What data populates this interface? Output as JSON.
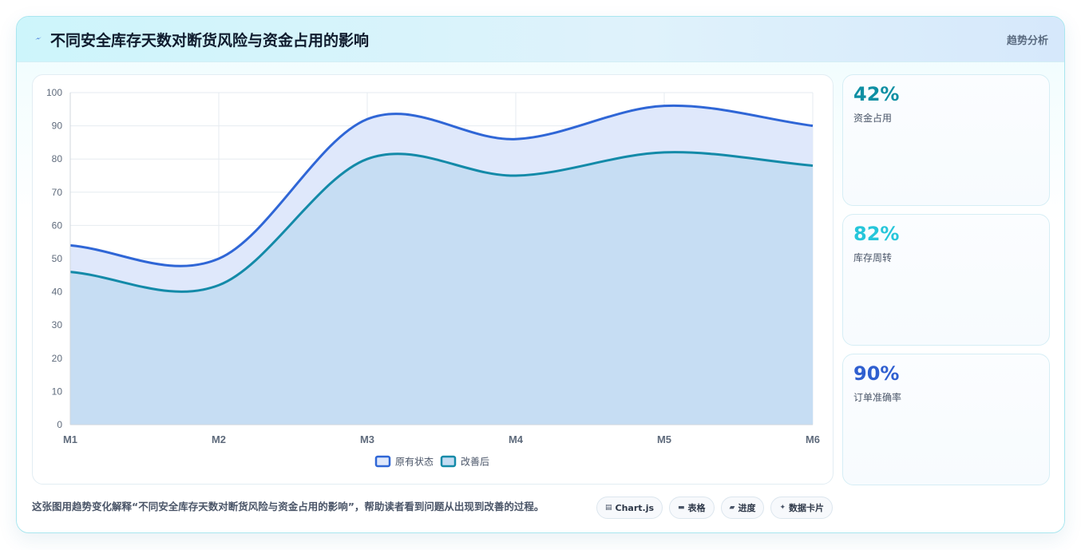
{
  "header": {
    "title": "不同安全库存天数对断货风险与资金占用的影响",
    "tag": "趋势分析",
    "icon": "lightning-icon"
  },
  "chart_data": {
    "type": "area",
    "title": "",
    "xlabel": "",
    "ylabel": "",
    "categories": [
      "M1",
      "M2",
      "M3",
      "M4",
      "M5",
      "M6"
    ],
    "ylim": [
      0,
      100
    ],
    "yticks": [
      0,
      10,
      20,
      30,
      40,
      50,
      60,
      70,
      80,
      90,
      100
    ],
    "grid": true,
    "legend_position": "bottom",
    "series": [
      {
        "name": "原有状态",
        "values": [
          54,
          50,
          92,
          86,
          96,
          90
        ],
        "color": "#2f66d6",
        "fill": "#dfe8fb"
      },
      {
        "name": "改善后",
        "values": [
          46,
          42,
          80,
          75,
          82,
          78
        ],
        "color": "#138aa8",
        "fill": "#c4dcf2"
      }
    ]
  },
  "stats": [
    {
      "value": "42%",
      "label": "资金占用",
      "color": "#0e8fa3"
    },
    {
      "value": "82%",
      "label": "库存周转",
      "color": "#26c6da"
    },
    {
      "value": "90%",
      "label": "订单准确率",
      "color": "#2f5fd0"
    }
  ],
  "footer": {
    "text": "这张图用趋势变化解释“不同安全库存天数对断货风险与资金占用的影响”，帮助读者看到问题从出现到改善的过程。",
    "chips": [
      {
        "icon": "▤",
        "label": "Chart.js"
      },
      {
        "icon": "▬",
        "label": "表格"
      },
      {
        "icon": "▰",
        "label": "进度"
      },
      {
        "icon": "✦",
        "label": "数据卡片"
      }
    ]
  }
}
